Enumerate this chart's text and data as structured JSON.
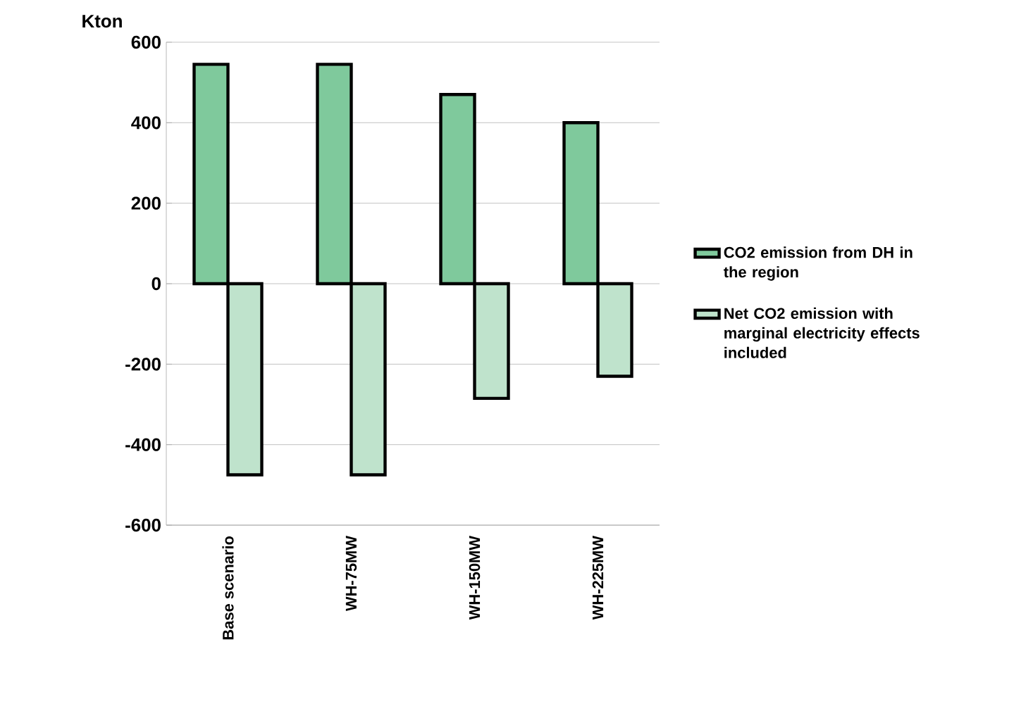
{
  "chart_data": {
    "type": "bar",
    "ylabel": "Kton",
    "categories": [
      "Base scenario",
      "WH-75MW",
      "WH-150MW",
      "WH-225MW"
    ],
    "series": [
      {
        "name": "CO2 emission from DH in the region",
        "color": "#7fc99c",
        "values": [
          545,
          545,
          470,
          400
        ]
      },
      {
        "name": "Net CO2 emission with marginal electricity effects included",
        "color": "#bfe3cc",
        "values": [
          -475,
          -475,
          -285,
          -230
        ]
      }
    ],
    "ylim": [
      -600,
      600
    ],
    "yticks": [
      -600,
      -400,
      -200,
      0,
      200,
      400,
      600
    ],
    "grid": "y",
    "legend": "right"
  }
}
